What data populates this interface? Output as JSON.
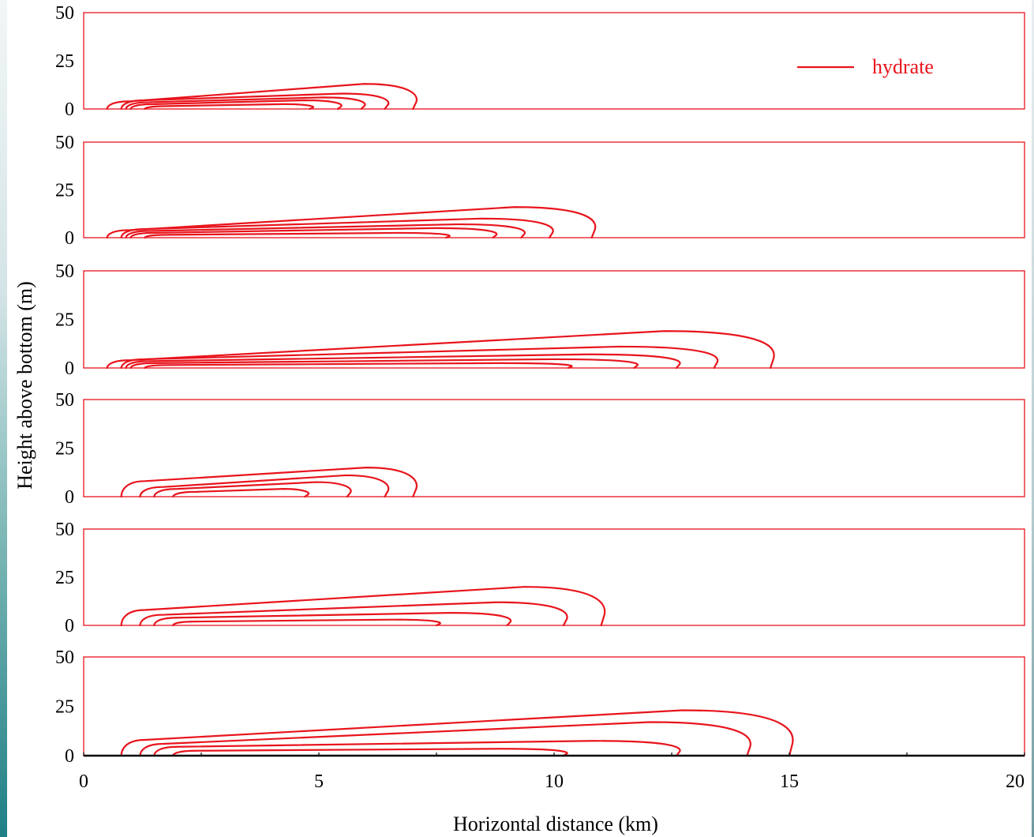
{
  "chart_data": {
    "type": "line",
    "title": "",
    "xlabel": "Horizontal distance  (km)",
    "ylabel": "Height above bottom  (m)",
    "xlim": [
      0,
      20
    ],
    "ylim": [
      0,
      50
    ],
    "x_ticks": [
      "0",
      "5",
      "10",
      "15",
      "20"
    ],
    "y_ticks": [
      "0",
      "25",
      "50"
    ],
    "legend": {
      "label": "hydrate",
      "position": "top-right"
    },
    "color": "#e8141c",
    "grid": false,
    "panels": [
      {
        "contours": [
          {
            "x0": 1.3,
            "base_top": 1.5,
            "top": 2.5,
            "x_end": 4.8
          },
          {
            "x0": 1.0,
            "base_top": 2.5,
            "top": 4.5,
            "x_end": 5.4
          },
          {
            "x0": 0.9,
            "base_top": 3.5,
            "top": 6.0,
            "x_end": 5.9
          },
          {
            "x0": 0.8,
            "base_top": 4.5,
            "top": 8.0,
            "x_end": 6.4
          },
          {
            "x0": 0.5,
            "base_top": 4.0,
            "top": 13.0,
            "x_end": 7.0
          }
        ]
      },
      {
        "contours": [
          {
            "x0": 1.3,
            "base_top": 1.5,
            "top": 2.5,
            "x_end": 7.7
          },
          {
            "x0": 1.0,
            "base_top": 2.5,
            "top": 5.0,
            "x_end": 8.7
          },
          {
            "x0": 0.9,
            "base_top": 3.5,
            "top": 7.0,
            "x_end": 9.3
          },
          {
            "x0": 0.8,
            "base_top": 4.5,
            "top": 10.0,
            "x_end": 9.9
          },
          {
            "x0": 0.5,
            "base_top": 4.0,
            "top": 16.0,
            "x_end": 10.8
          }
        ]
      },
      {
        "contours": [
          {
            "x0": 1.3,
            "base_top": 1.5,
            "top": 2.5,
            "x_end": 10.3
          },
          {
            "x0": 1.0,
            "base_top": 2.5,
            "top": 4.5,
            "x_end": 11.7
          },
          {
            "x0": 0.9,
            "base_top": 3.5,
            "top": 7.0,
            "x_end": 12.6
          },
          {
            "x0": 0.8,
            "base_top": 4.5,
            "top": 11.0,
            "x_end": 13.4
          },
          {
            "x0": 0.5,
            "base_top": 4.0,
            "top": 19.0,
            "x_end": 14.6
          }
        ]
      },
      {
        "contours": [
          {
            "x0": 1.9,
            "base_top": 2.5,
            "top": 4.0,
            "x_end": 4.7
          },
          {
            "x0": 1.5,
            "base_top": 4.0,
            "top": 7.5,
            "x_end": 5.6
          },
          {
            "x0": 1.2,
            "base_top": 5.0,
            "top": 11.0,
            "x_end": 6.4
          },
          {
            "x0": 0.8,
            "base_top": 8.0,
            "top": 15.0,
            "x_end": 7.0
          }
        ]
      },
      {
        "contours": [
          {
            "x0": 1.9,
            "base_top": 2.0,
            "top": 3.0,
            "x_end": 7.5
          },
          {
            "x0": 1.5,
            "base_top": 4.0,
            "top": 6.5,
            "x_end": 9.0
          },
          {
            "x0": 1.2,
            "base_top": 5.5,
            "top": 12.0,
            "x_end": 10.2
          },
          {
            "x0": 0.8,
            "base_top": 8.0,
            "top": 20.0,
            "x_end": 11.0
          }
        ]
      },
      {
        "contours": [
          {
            "x0": 1.9,
            "base_top": 2.5,
            "top": 3.5,
            "x_end": 10.2
          },
          {
            "x0": 1.5,
            "base_top": 4.5,
            "top": 7.5,
            "x_end": 12.6
          },
          {
            "x0": 1.2,
            "base_top": 6.0,
            "top": 17.0,
            "x_end": 14.1
          },
          {
            "x0": 0.8,
            "base_top": 8.0,
            "top": 23.0,
            "x_end": 15.0
          }
        ]
      }
    ]
  }
}
